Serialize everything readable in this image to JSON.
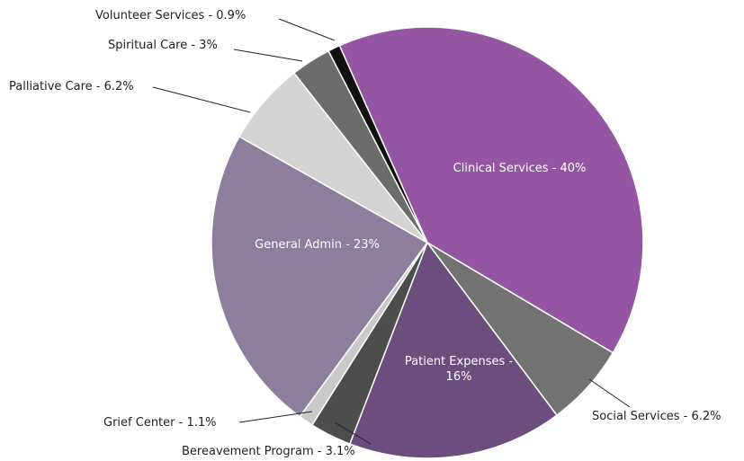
{
  "chart_data": {
    "type": "pie",
    "categories": [
      "Clinical Services - 40%",
      "Social Services - 6.2%",
      "Patient Expenses - 16%",
      "Bereavement Program - 3.1%",
      "Grief Center - 1.1%",
      "General Admin - 23%",
      "Palliative Care - 6.2%",
      "Spiritual Care - 3%",
      "Volunteer Services - 0.9%"
    ],
    "values": [
      40,
      6.2,
      16,
      3.1,
      1.1,
      23,
      6.2,
      3,
      0.9
    ],
    "colors": [
      "#9456a2",
      "#727272",
      "#6b4d7e",
      "#4d4d4d",
      "#c9c9c9",
      "#8d7e9d",
      "#d4d4d4",
      "#6c6c6c",
      "#111111"
    ]
  }
}
